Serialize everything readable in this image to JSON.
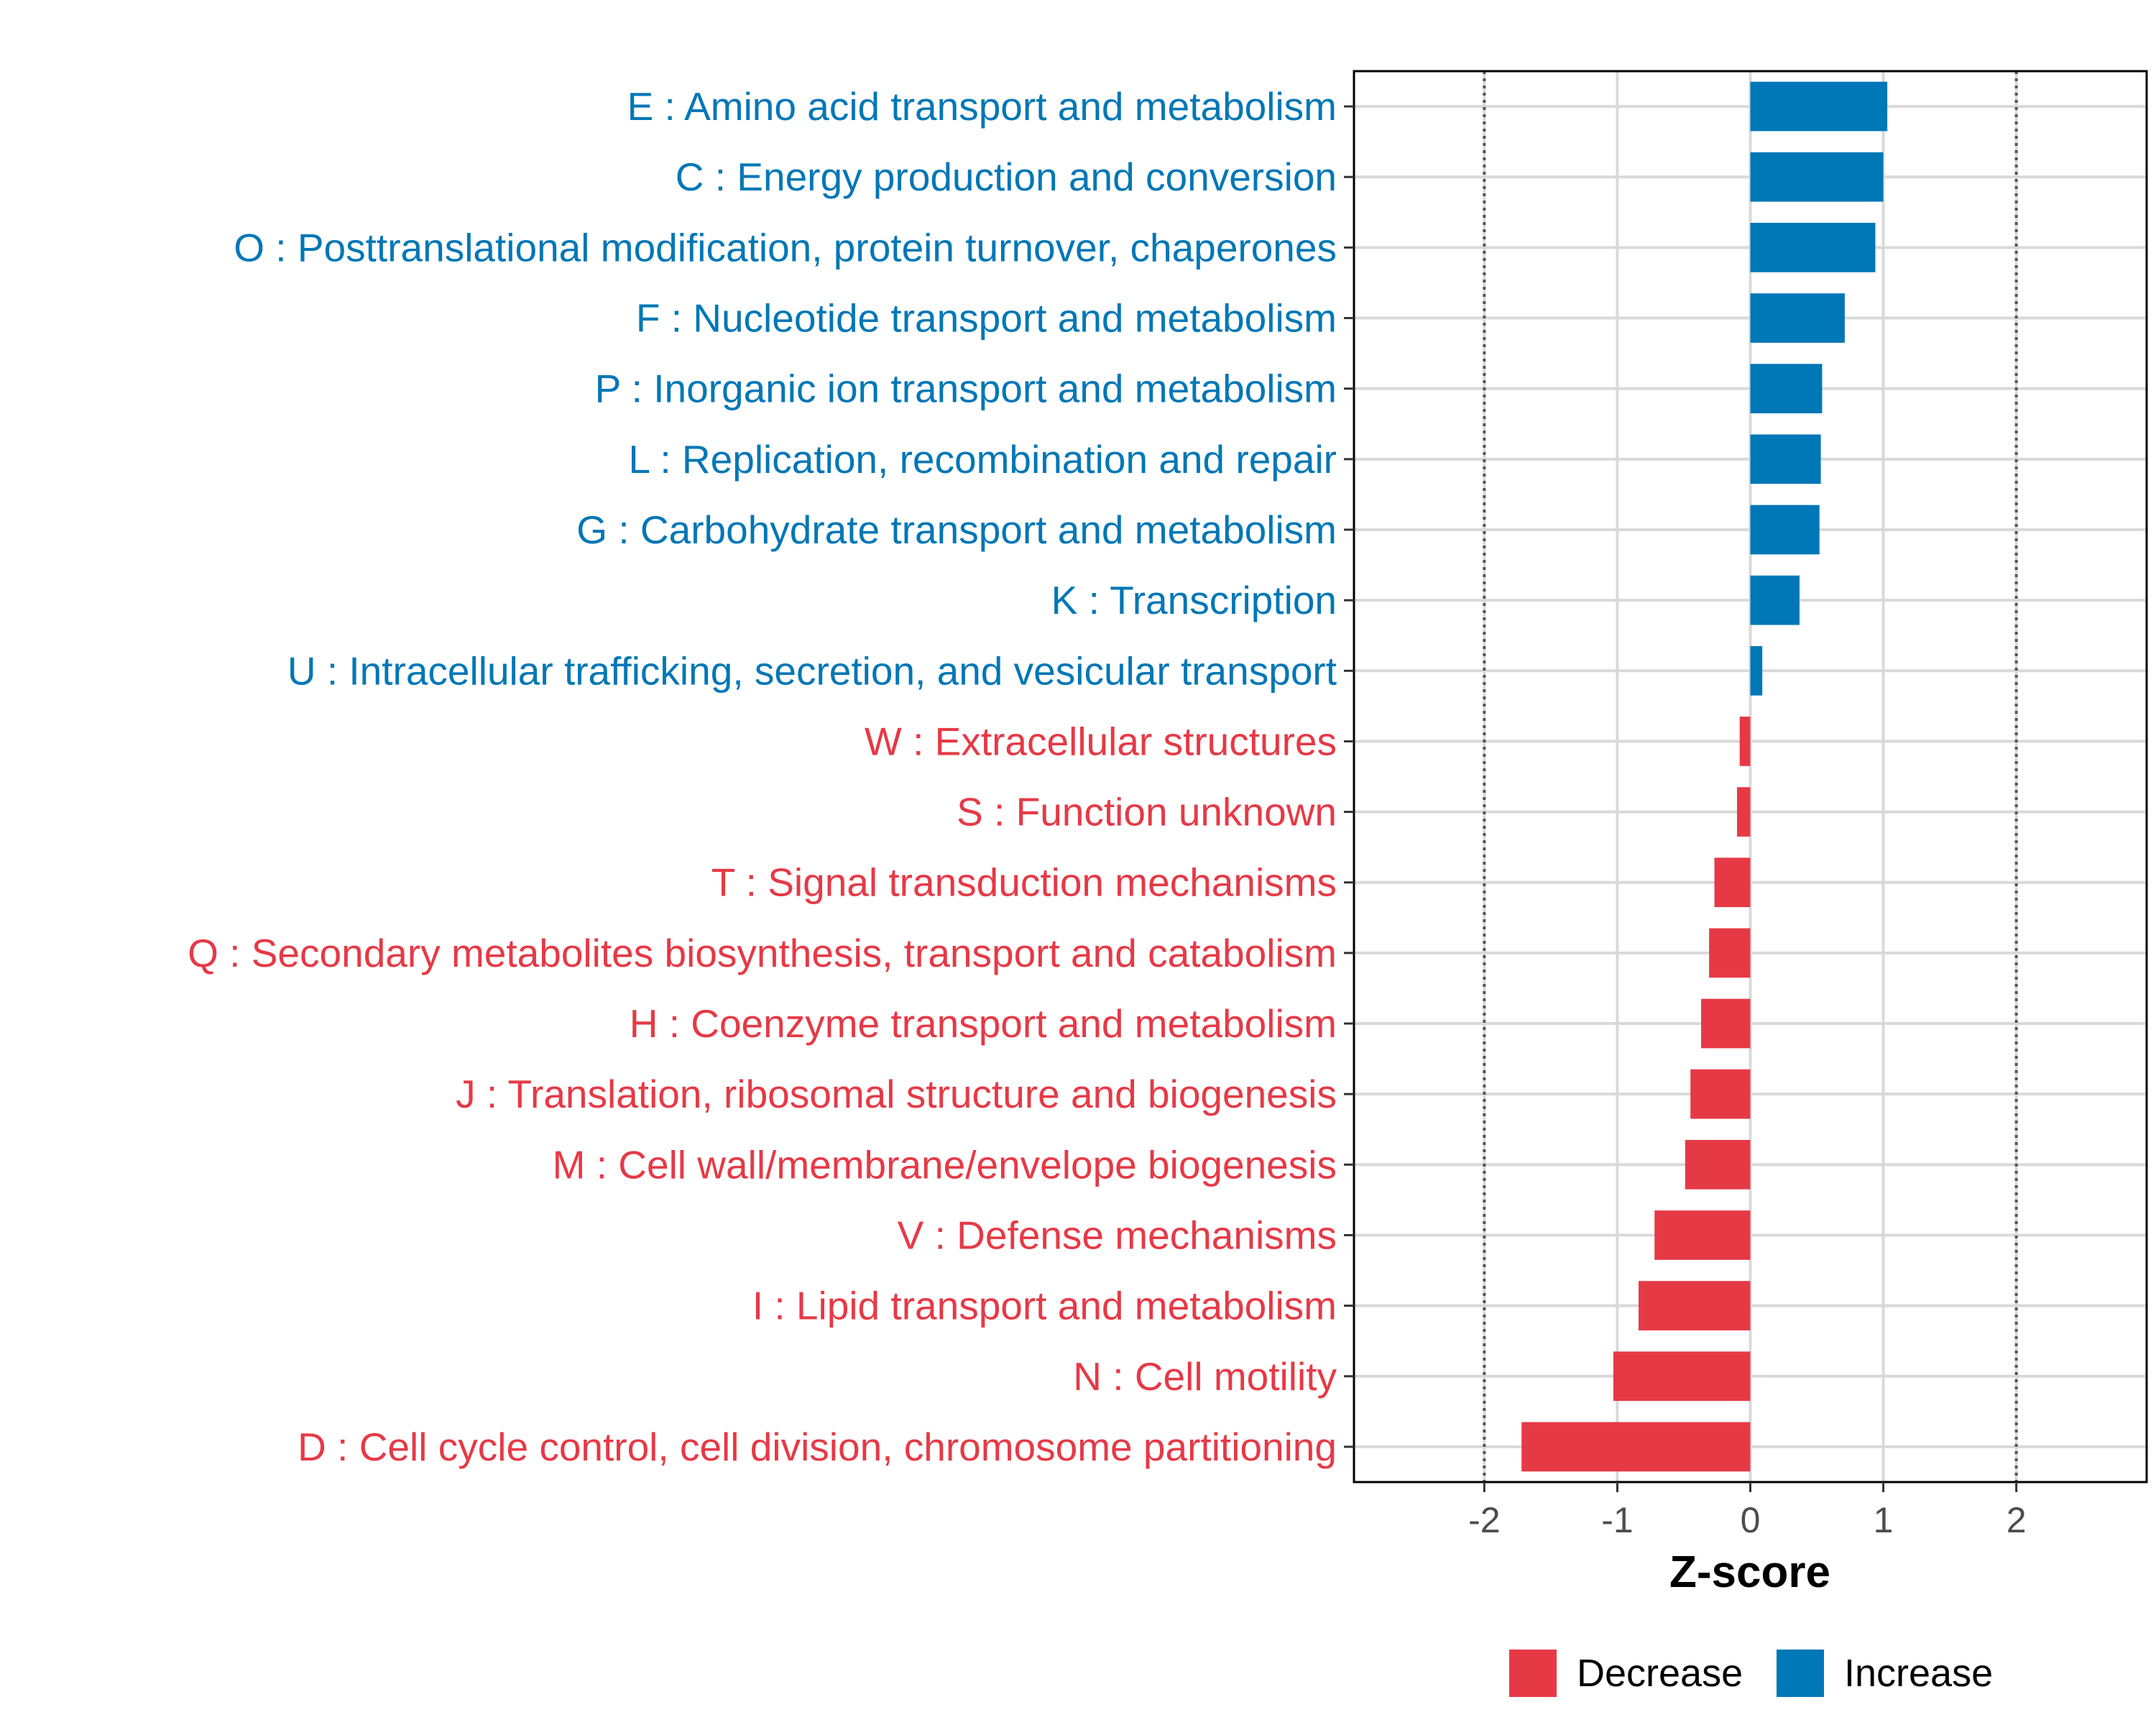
{
  "chart_data": {
    "type": "bar",
    "orientation": "horizontal",
    "categories": [
      "E : Amino acid transport and metabolism",
      "C : Energy production and conversion",
      "O : Posttranslational modification, protein turnover, chaperones",
      "F : Nucleotide transport and metabolism",
      "P : Inorganic ion transport and metabolism",
      "L : Replication, recombination and repair",
      "G : Carbohydrate transport and metabolism",
      "K : Transcription",
      "U : Intracellular trafficking, secretion, and vesicular transport",
      "W : Extracellular structures",
      "S : Function unknown",
      "T : Signal transduction mechanisms",
      "Q : Secondary metabolites biosynthesis, transport and catabolism",
      "H : Coenzyme transport and metabolism",
      "J : Translation, ribosomal structure and biogenesis",
      "M : Cell wall/membrane/envelope biogenesis",
      "V : Defense mechanisms",
      "I : Lipid transport and metabolism",
      "N : Cell motility",
      "D : Cell cycle control, cell division, chromosome partitioning"
    ],
    "values": [
      1.03,
      1.0,
      0.94,
      0.71,
      0.54,
      0.53,
      0.52,
      0.37,
      0.09,
      -0.08,
      -0.1,
      -0.27,
      -0.31,
      -0.37,
      -0.45,
      -0.49,
      -0.72,
      -0.84,
      -1.03,
      -1.72
    ],
    "groups": [
      "Increase",
      "Increase",
      "Increase",
      "Increase",
      "Increase",
      "Increase",
      "Increase",
      "Increase",
      "Increase",
      "Decrease",
      "Decrease",
      "Decrease",
      "Decrease",
      "Decrease",
      "Decrease",
      "Decrease",
      "Decrease",
      "Decrease",
      "Decrease",
      "Decrease"
    ],
    "xlabel": "Z-score",
    "ylabel": "",
    "xlim": [
      -2.98,
      2.98
    ],
    "xticks": [
      -2,
      -1,
      0,
      1,
      2
    ],
    "xtick_labels": [
      "-2",
      "-1",
      "0",
      "1",
      "2"
    ],
    "reference_lines": [
      -2,
      2
    ],
    "grid": true,
    "legend": {
      "position": "bottom",
      "entries": [
        {
          "label": "Decrease",
          "color": "#E63946"
        },
        {
          "label": "Increase",
          "color": "#0077B6"
        }
      ]
    },
    "colors": {
      "Decrease": "#E63946",
      "Increase": "#0077B6"
    }
  }
}
